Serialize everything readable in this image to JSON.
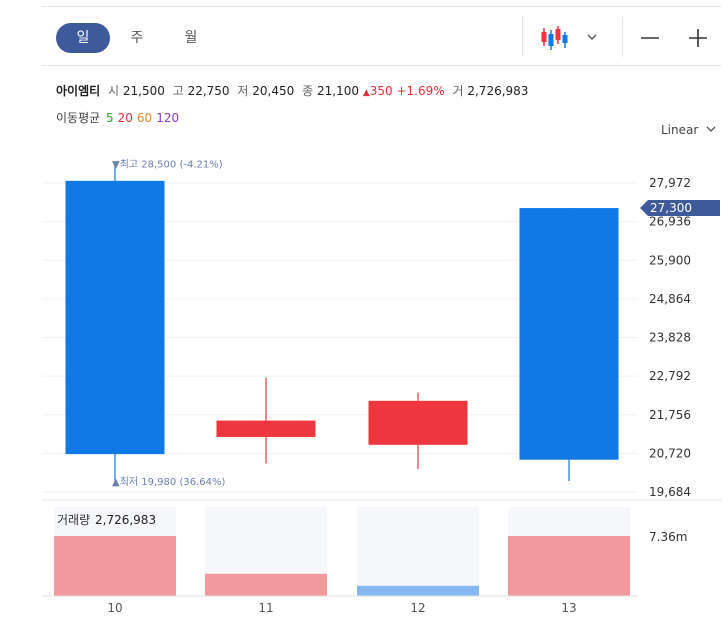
{
  "tabs": [
    {
      "label": "일",
      "active": true
    },
    {
      "label": "주",
      "active": false
    },
    {
      "label": "월",
      "active": false
    }
  ],
  "toolbar": {
    "chart_type_icon": "candlestick-icon",
    "dropdown_icon": "chevron-down-icon",
    "zoom_out_icon": "minus-icon",
    "zoom_in_icon": "plus-icon"
  },
  "summary": {
    "name": "아이엠티",
    "open_label": "시",
    "open": "21,500",
    "high_label": "고",
    "high": "22,750",
    "low_label": "저",
    "low": "20,450",
    "close_label": "종",
    "close": "21,100",
    "change_arrow": "▲",
    "change": "350",
    "change_pct": "+1.69%",
    "volume_label": "거",
    "volume": "2,726,983"
  },
  "moving_average": {
    "label": "이동평균",
    "periods": [
      {
        "text": "5",
        "color": "#3aa63a"
      },
      {
        "text": "20",
        "color": "#e0303a"
      },
      {
        "text": "60",
        "color": "#e08a2a"
      },
      {
        "text": "120",
        "color": "#8a3ad0"
      }
    ]
  },
  "scale_label": "Linear",
  "colors": {
    "up": "#ee363e",
    "down": "#0f7ae6",
    "vol_up": "#f2999e",
    "vol_down": "#85b8f0",
    "annotation": "#6b7fae",
    "current_price_tag": "#3f5a9a"
  },
  "chart_data": {
    "type": "candlestick",
    "categories": [
      "10",
      "11",
      "12",
      "13"
    ],
    "open": [
      28030,
      21160,
      20950,
      27300
    ],
    "high": [
      28500,
      22750,
      22350,
      27300
    ],
    "low": [
      19980,
      20450,
      20300,
      19980
    ],
    "close": [
      20700,
      21600,
      22130,
      20550
    ],
    "volume_relative": [
      1.0,
      0.37,
      0.17,
      1.0
    ],
    "ylim": [
      19684,
      28600
    ],
    "y_ticks": [
      {
        "value": 27972,
        "label": "27,972"
      },
      {
        "value": 26936,
        "label": "26,936"
      },
      {
        "value": 25900,
        "label": "25,900"
      },
      {
        "value": 24864,
        "label": "24,864"
      },
      {
        "value": 23828,
        "label": "23,828"
      },
      {
        "value": 22792,
        "label": "22,792"
      },
      {
        "value": 21756,
        "label": "21,756"
      },
      {
        "value": 20720,
        "label": "20,720"
      },
      {
        "value": 19684,
        "label": "19,684"
      }
    ],
    "current_price": {
      "value": 27300,
      "label": "27,300"
    },
    "max_annotation": {
      "value": 28500,
      "text": "▼최고 28,500 (-4.21%)"
    },
    "min_annotation": {
      "value": 19980,
      "text": "▲최저 19,980 (36.64%)"
    },
    "volume_panel": {
      "label": "거래량",
      "value": "2,726,983",
      "axis_label": "7.36m"
    },
    "grid": true
  }
}
